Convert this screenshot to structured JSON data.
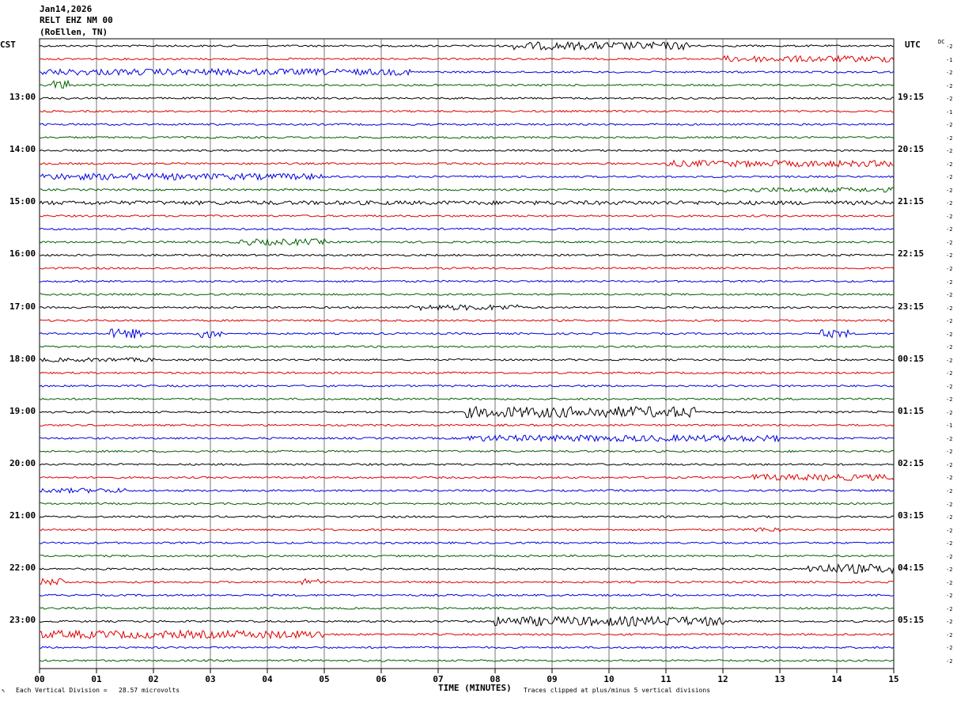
{
  "header": {
    "date": "Jan14,2026",
    "station": "RELT EHZ NM 00",
    "location": "(RoEllen, TN)"
  },
  "left_timezone": "CST",
  "right_timezone": "UTC",
  "dc_label": "DC",
  "hour_labels_left": [
    "13:00",
    "14:00",
    "15:00",
    "16:00",
    "17:00",
    "18:00",
    "19:00",
    "20:00",
    "21:00",
    "22:00",
    "23:00"
  ],
  "hour_labels_right": [
    "19:15",
    "20:15",
    "21:15",
    "22:15",
    "23:15",
    "00:15",
    "01:15",
    "02:15",
    "03:15",
    "04:15",
    "05:15"
  ],
  "x_ticks": [
    "00",
    "01",
    "02",
    "03",
    "04",
    "05",
    "06",
    "07",
    "08",
    "09",
    "10",
    "11",
    "12",
    "13",
    "14",
    "15"
  ],
  "dc_values": [
    "-2",
    "-1",
    "-2",
    "-2",
    "-2",
    "-1",
    "-2",
    "-2",
    "-2",
    "-2",
    "-2",
    "-2",
    "-2",
    "-2",
    "-2",
    "-2",
    "-2",
    "-2",
    "-2",
    "-2",
    "-2",
    "-2",
    "-2",
    "-2",
    "-2",
    "-2",
    "-2",
    "-2",
    "-2",
    "-1",
    "-2",
    "-2",
    "-2",
    "-2",
    "-2",
    "-2",
    "-2",
    "-2",
    "-2",
    "-2",
    "-2",
    "-2",
    "-2",
    "-2",
    "-2",
    "-2",
    "-2",
    "-2"
  ],
  "trace_colors": [
    "#000000",
    "#e00000",
    "#0000e0",
    "#006000"
  ],
  "footer": {
    "x_axis_label": "TIME (MINUTES)",
    "scale_note": "Each Vertical Division =   28.57 microvolts",
    "clip_note": "Traces clipped at plus/minus 5 vertical divisions"
  }
}
